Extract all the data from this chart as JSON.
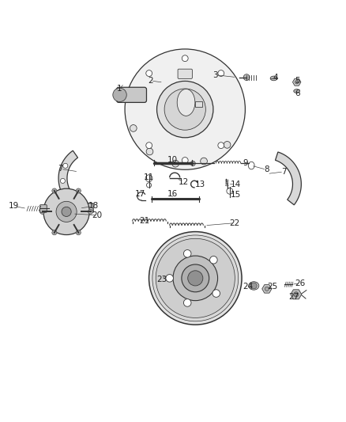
{
  "title": "",
  "bg_color": "#ffffff",
  "line_color": "#333333",
  "label_color": "#222222",
  "fig_width": 4.38,
  "fig_height": 5.33,
  "dpi": 100
}
